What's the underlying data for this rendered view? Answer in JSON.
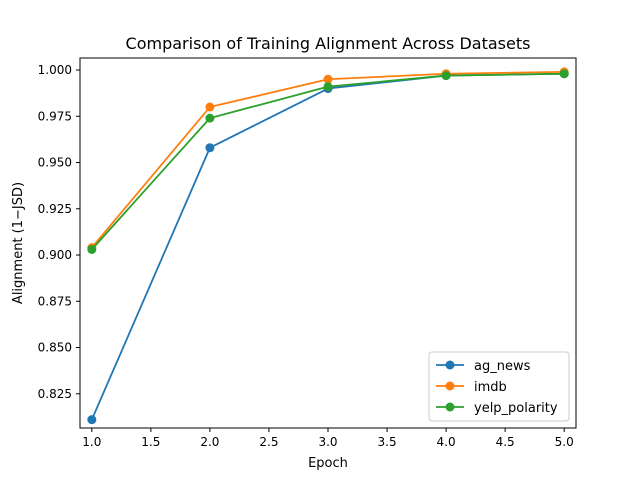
{
  "chart_data": {
    "type": "line",
    "title": "Comparison of Training Alignment Across Datasets",
    "xlabel": "Epoch",
    "ylabel": "Alignment (1−JSD)",
    "x": [
      1.0,
      2.0,
      3.0,
      4.0,
      5.0
    ],
    "xlim": [
      0.9,
      5.1
    ],
    "ylim": [
      0.8065,
      1.0065
    ],
    "xticks": [
      1.0,
      1.5,
      2.0,
      2.5,
      3.0,
      3.5,
      4.0,
      4.5,
      5.0
    ],
    "xtick_labels": [
      "1.0",
      "1.5",
      "2.0",
      "2.5",
      "3.0",
      "3.5",
      "4.0",
      "4.5",
      "5.0"
    ],
    "yticks": [
      0.825,
      0.85,
      0.875,
      0.9,
      0.925,
      0.95,
      0.975,
      1.0
    ],
    "ytick_labels": [
      "0.825",
      "0.850",
      "0.875",
      "0.900",
      "0.925",
      "0.950",
      "0.975",
      "1.000"
    ],
    "grid": false,
    "legend_position": "lower-right",
    "series": [
      {
        "name": "ag_news",
        "color": "#1f77b4",
        "values": [
          0.811,
          0.958,
          0.99,
          0.997,
          0.998
        ]
      },
      {
        "name": "imdb",
        "color": "#ff7f0e",
        "values": [
          0.904,
          0.98,
          0.995,
          0.998,
          0.999
        ]
      },
      {
        "name": "yelp_polarity",
        "color": "#2ca02c",
        "values": [
          0.903,
          0.974,
          0.991,
          0.997,
          0.998
        ]
      }
    ]
  }
}
